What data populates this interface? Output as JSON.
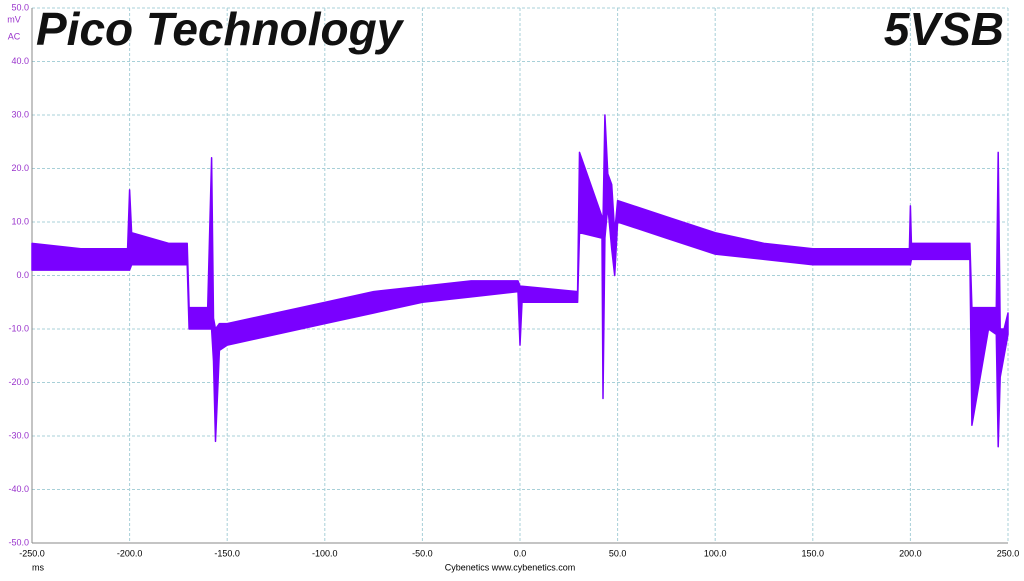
{
  "chart_data": {
    "type": "band",
    "title": "Pico Technology",
    "subtitle": "5VSB",
    "y_unit": "mV",
    "y_coupling": "AC",
    "x_unit": "ms",
    "footer": "Cybenetics  www.cybenetics.com",
    "color": "#7a00ff",
    "grid": true,
    "xlim": [
      -250,
      250
    ],
    "ylim": [
      -50,
      50
    ],
    "xticks": [
      {
        "value": -250,
        "label": "-250.0"
      },
      {
        "value": -200,
        "label": "-200.0"
      },
      {
        "value": -150,
        "label": "-150.0"
      },
      {
        "value": -100,
        "label": "-100.0"
      },
      {
        "value": -50,
        "label": "-50.0"
      },
      {
        "value": 0,
        "label": "0.0"
      },
      {
        "value": 50,
        "label": "50.0"
      },
      {
        "value": 100,
        "label": "100.0"
      },
      {
        "value": 150,
        "label": "150.0"
      },
      {
        "value": 200,
        "label": "200.0"
      },
      {
        "value": 250,
        "label": "250.0"
      }
    ],
    "yticks": [
      {
        "value": -50,
        "label": "-50.0"
      },
      {
        "value": -40,
        "label": "-40.0"
      },
      {
        "value": -30,
        "label": "-30.0"
      },
      {
        "value": -20,
        "label": "-20.0"
      },
      {
        "value": -10,
        "label": "-10.0"
      },
      {
        "value": 0,
        "label": "0.0"
      },
      {
        "value": 10,
        "label": "10.0"
      },
      {
        "value": 20,
        "label": "20.0"
      },
      {
        "value": 30,
        "label": "30.0"
      },
      {
        "value": 40,
        "label": "40.0"
      },
      {
        "value": 50,
        "label": "50.0"
      }
    ],
    "x": [
      -250,
      -225,
      -201,
      -200,
      -199,
      -180,
      -170.5,
      -169.5,
      -160,
      -158,
      -157,
      -156,
      -154,
      -150,
      -125,
      -100,
      -75,
      -50,
      -25,
      -1,
      0,
      1,
      29.5,
      30.5,
      42,
      42.5,
      43.5,
      45,
      47,
      48.5,
      50,
      75,
      100,
      125,
      150,
      175,
      199.5,
      200,
      200.5,
      230.5,
      231.5,
      240,
      244,
      245,
      246,
      248,
      250
    ],
    "upper": [
      6,
      5,
      5,
      16,
      8,
      6,
      6,
      -6,
      -6,
      22,
      -8,
      -10,
      -9,
      -9,
      -7,
      -5,
      -3,
      -2,
      -1,
      -1,
      -2,
      -2,
      -3,
      23,
      11,
      10,
      30,
      19,
      17,
      8,
      14,
      11,
      8,
      6,
      5,
      5,
      5,
      13,
      6,
      6,
      -6,
      -6,
      -6,
      23,
      -10,
      -10,
      -7
    ],
    "lower": [
      1,
      1,
      1,
      1,
      2,
      2,
      2,
      -10,
      -10,
      -10,
      -16,
      -31,
      -14,
      -13,
      -11,
      -9,
      -7,
      -5,
      -4,
      -3,
      -13,
      -5,
      -5,
      8,
      7,
      -23,
      7,
      13,
      5,
      0,
      10,
      7,
      4,
      3,
      2,
      2,
      2,
      2,
      3,
      3,
      -28,
      -10,
      -11,
      -32,
      -19,
      -15,
      -11
    ]
  }
}
